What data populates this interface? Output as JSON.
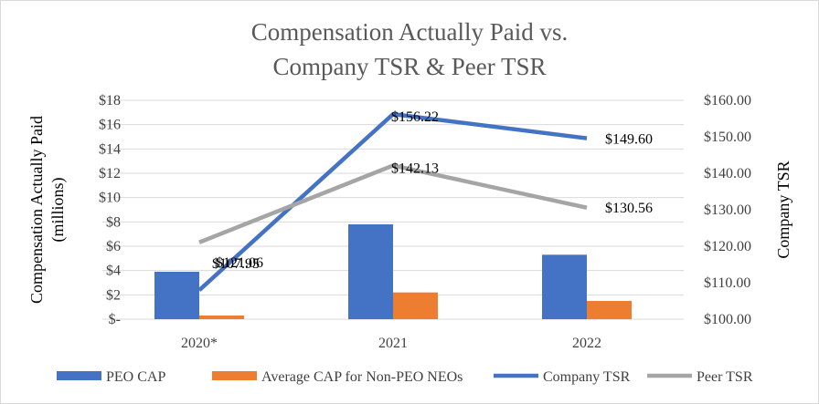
{
  "chart_data": {
    "type": "bar",
    "title_line1": "Compensation Actually Paid vs.",
    "title_line2": "Company  TSR & Peer TSR",
    "categories": [
      "2020*",
      "2021",
      "2022"
    ],
    "ylabel_left": "Compensation Actually Paid (millions)",
    "ylabel_left_line1": "Compensation Actually Paid",
    "ylabel_left_line2": "(millions)",
    "ylabel_right": "Company TSR",
    "ylim_left": [
      0,
      18
    ],
    "ylim_right": [
      100,
      160
    ],
    "left_ticks": [
      "$-",
      "$2",
      "$4",
      "$6",
      "$8",
      "$10",
      "$12",
      "$14",
      "$16",
      "$18"
    ],
    "right_ticks": [
      "$100.00",
      "$110.00",
      "$120.00",
      "$130.00",
      "$140.00",
      "$150.00",
      "$160.00"
    ],
    "bar_series": [
      {
        "name": "PEO CAP",
        "color": "#4472C4",
        "values": [
          3.9,
          7.8,
          5.3
        ]
      },
      {
        "name": "Average CAP for Non-PEO NEOs",
        "color": "#ED7D31",
        "values": [
          0.3,
          2.2,
          1.5
        ]
      }
    ],
    "line_series": [
      {
        "name": "Company TSR",
        "color": "#4472C4",
        "axis": "right",
        "values": [
          107.95,
          156.22,
          149.6
        ],
        "labels": [
          "$107.95",
          "$156.22",
          "$149.60"
        ]
      },
      {
        "name": "Peer TSR",
        "color": "#A5A5A5",
        "axis": "right",
        "values": [
          121.06,
          142.13,
          130.56
        ],
        "labels": [
          "$121.06",
          "$142.13",
          "$130.56"
        ]
      }
    ],
    "legend": [
      "PEO CAP",
      "Average CAP for Non-PEO NEOs",
      "Company TSR",
      "Peer TSR"
    ],
    "legend_position": "bottom",
    "grid": true
  }
}
